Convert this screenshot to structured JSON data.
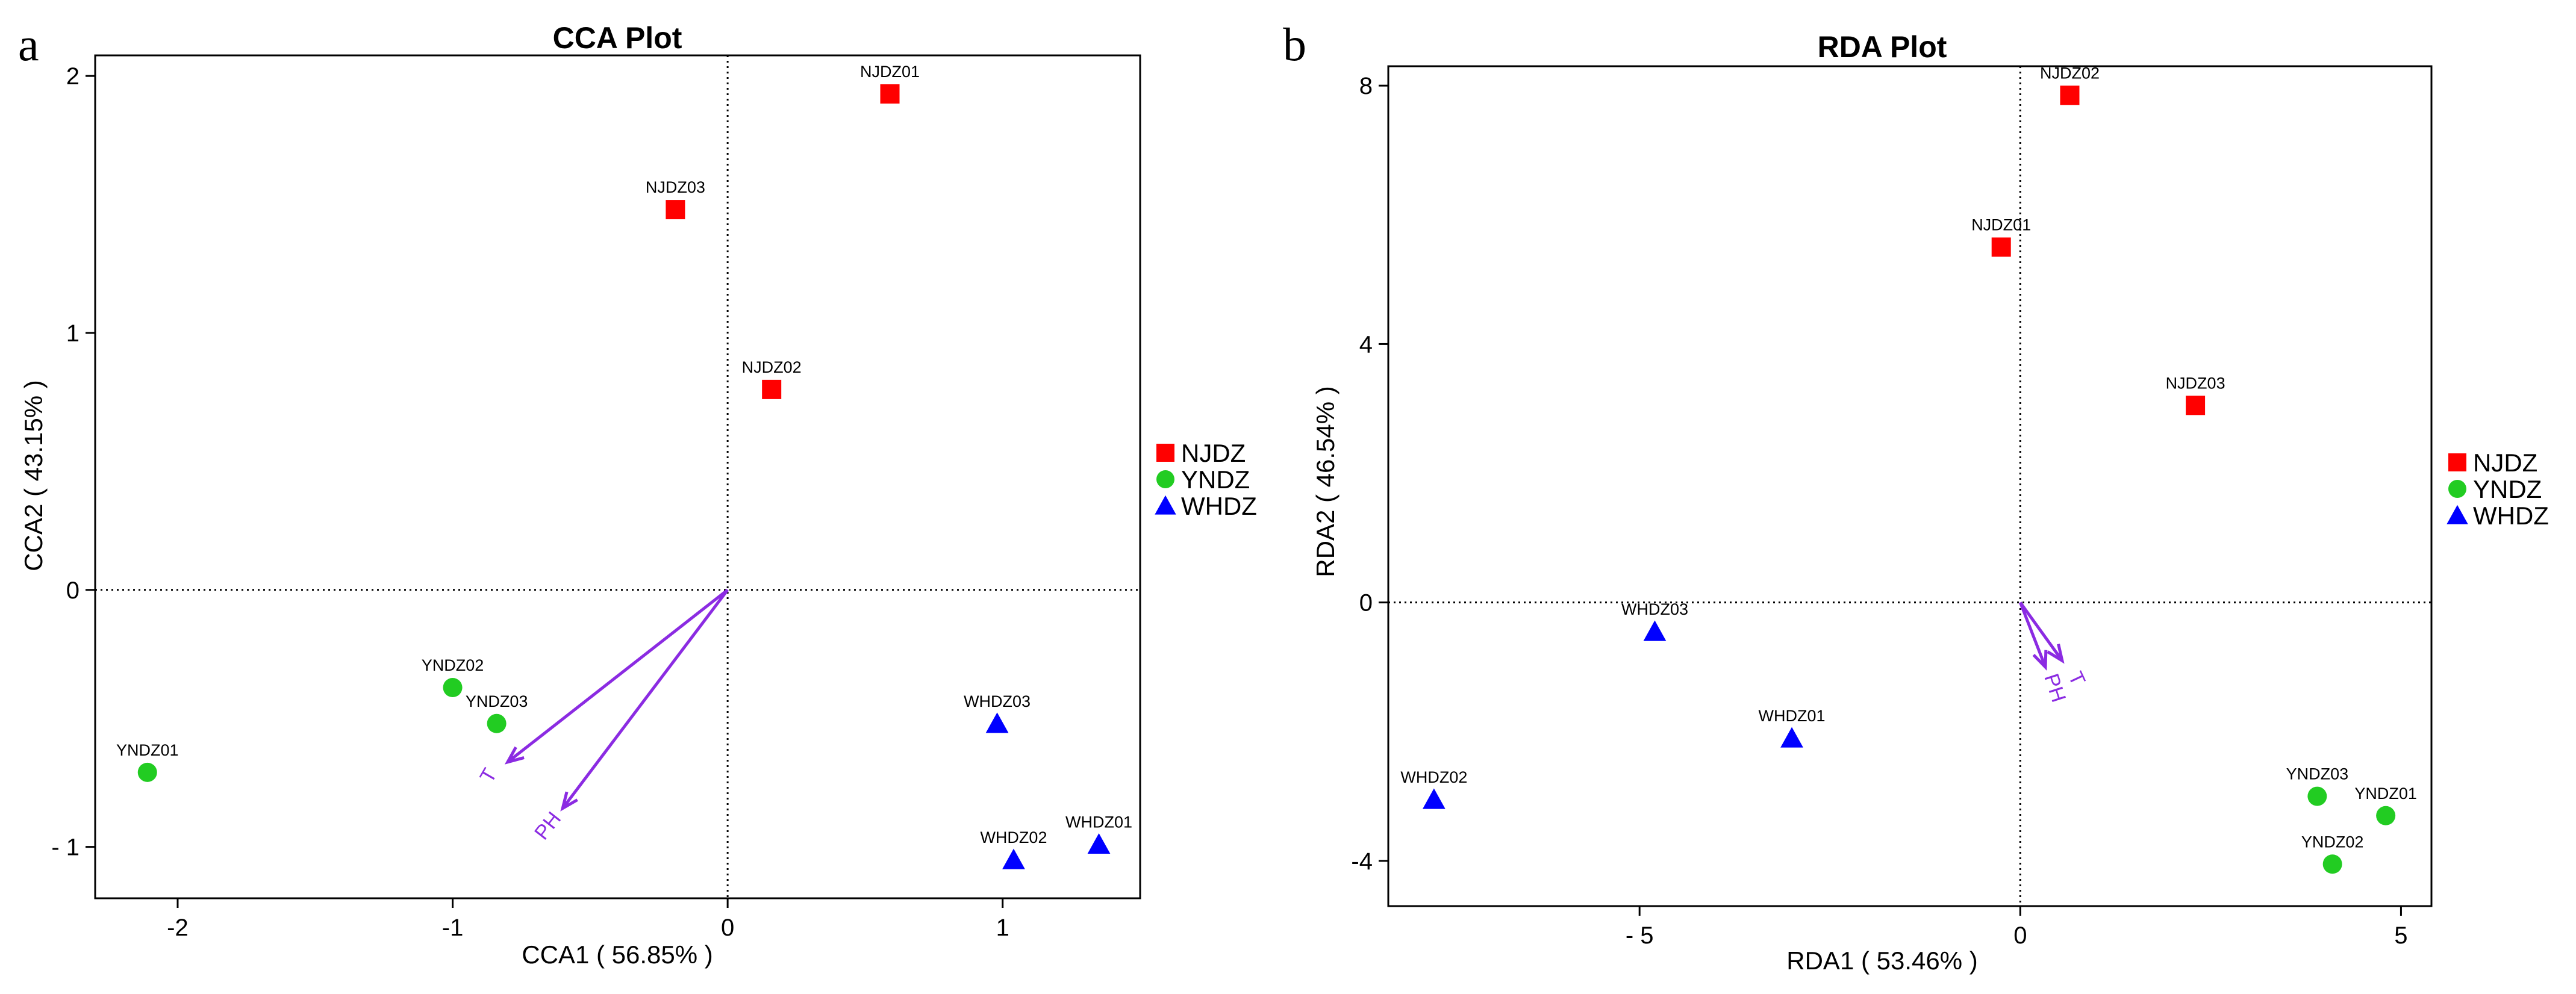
{
  "colors": {
    "NJDZ": "#FF0000",
    "YNDZ": "#22CC22",
    "WHDZ": "#0000FF",
    "arrow": "#8B2BE2"
  },
  "chart_data": [
    {
      "panel": "a",
      "type": "scatter",
      "title": "CCA Plot",
      "xlabel": "CCA1 ( 56.85% )",
      "ylabel": "CCA2 ( 43.15% )",
      "xlim": [
        -2.3,
        1.5
      ],
      "ylim": [
        -1.2,
        2.08
      ],
      "xticks": [
        -2,
        -1,
        0,
        1
      ],
      "xtick_labels": [
        "-2",
        "-1",
        "0",
        "1"
      ],
      "yticks": [
        -1,
        0,
        1,
        2
      ],
      "ytick_labels": [
        "- 1",
        "0",
        "1",
        "2"
      ],
      "legend": {
        "position": "right",
        "entries": [
          {
            "group": "NJDZ",
            "label": "NJDZ",
            "marker": "square"
          },
          {
            "group": "YNDZ",
            "label": "YNDZ",
            "marker": "circle"
          },
          {
            "group": "WHDZ",
            "label": "WHDZ",
            "marker": "triangle"
          }
        ]
      },
      "points": [
        {
          "label": "NJDZ01",
          "group": "NJDZ",
          "x": 0.59,
          "y": 1.93
        },
        {
          "label": "NJDZ03",
          "group": "NJDZ",
          "x": -0.19,
          "y": 1.48
        },
        {
          "label": "NJDZ02",
          "group": "NJDZ",
          "x": 0.16,
          "y": 0.78
        },
        {
          "label": "YNDZ02",
          "group": "YNDZ",
          "x": -1.0,
          "y": -0.38
        },
        {
          "label": "YNDZ03",
          "group": "YNDZ",
          "x": -0.84,
          "y": -0.52
        },
        {
          "label": "YNDZ01",
          "group": "YNDZ",
          "x": -2.11,
          "y": -0.71
        },
        {
          "label": "WHDZ03",
          "group": "WHDZ",
          "x": 0.98,
          "y": -0.52
        },
        {
          "label": "WHDZ02",
          "group": "WHDZ",
          "x": 1.04,
          "y": -1.05
        },
        {
          "label": "WHDZ01",
          "group": "WHDZ",
          "x": 1.35,
          "y": -0.99
        }
      ],
      "arrows": [
        {
          "label": "T",
          "x": -0.8,
          "y": -0.67,
          "label_rotation": -60
        },
        {
          "label": "PH",
          "x": -0.6,
          "y": -0.85,
          "label_rotation": -52
        }
      ]
    },
    {
      "panel": "b",
      "type": "scatter",
      "title": "RDA Plot",
      "xlabel": "RDA1 ( 53.46% )",
      "ylabel": "RDA2 ( 46.54% )",
      "xlim": [
        -8.3,
        5.4
      ],
      "ylim": [
        -4.7,
        8.3
      ],
      "xticks": [
        -5,
        0,
        5
      ],
      "xtick_labels": [
        "- 5",
        "0",
        "5"
      ],
      "yticks": [
        -4,
        0,
        4,
        8
      ],
      "ytick_labels": [
        "-4",
        "0",
        "4",
        "8"
      ],
      "legend": {
        "position": "right",
        "entries": [
          {
            "group": "NJDZ",
            "label": "NJDZ",
            "marker": "square"
          },
          {
            "group": "YNDZ",
            "label": "YNDZ",
            "marker": "circle"
          },
          {
            "group": "WHDZ",
            "label": "WHDZ",
            "marker": "triangle"
          }
        ]
      },
      "points": [
        {
          "label": "NJDZ02",
          "group": "NJDZ",
          "x": 0.65,
          "y": 7.85
        },
        {
          "label": "NJDZ01",
          "group": "NJDZ",
          "x": -0.25,
          "y": 5.5
        },
        {
          "label": "NJDZ03",
          "group": "NJDZ",
          "x": 2.3,
          "y": 3.05
        },
        {
          "label": "WHDZ03",
          "group": "WHDZ",
          "x": -4.8,
          "y": -0.45
        },
        {
          "label": "WHDZ01",
          "group": "WHDZ",
          "x": -3.0,
          "y": -2.1
        },
        {
          "label": "WHDZ02",
          "group": "WHDZ",
          "x": -7.7,
          "y": -3.05
        },
        {
          "label": "YNDZ03",
          "group": "YNDZ",
          "x": 3.9,
          "y": -3.0
        },
        {
          "label": "YNDZ01",
          "group": "YNDZ",
          "x": 4.8,
          "y": -3.3
        },
        {
          "label": "YNDZ02",
          "group": "YNDZ",
          "x": 4.1,
          "y": -4.05
        }
      ],
      "arrows": [
        {
          "label": "T",
          "x": 0.55,
          "y": -0.9,
          "label_rotation": 65
        },
        {
          "label": "PH",
          "x": 0.33,
          "y": -1.0,
          "label_rotation": 72
        }
      ]
    }
  ]
}
